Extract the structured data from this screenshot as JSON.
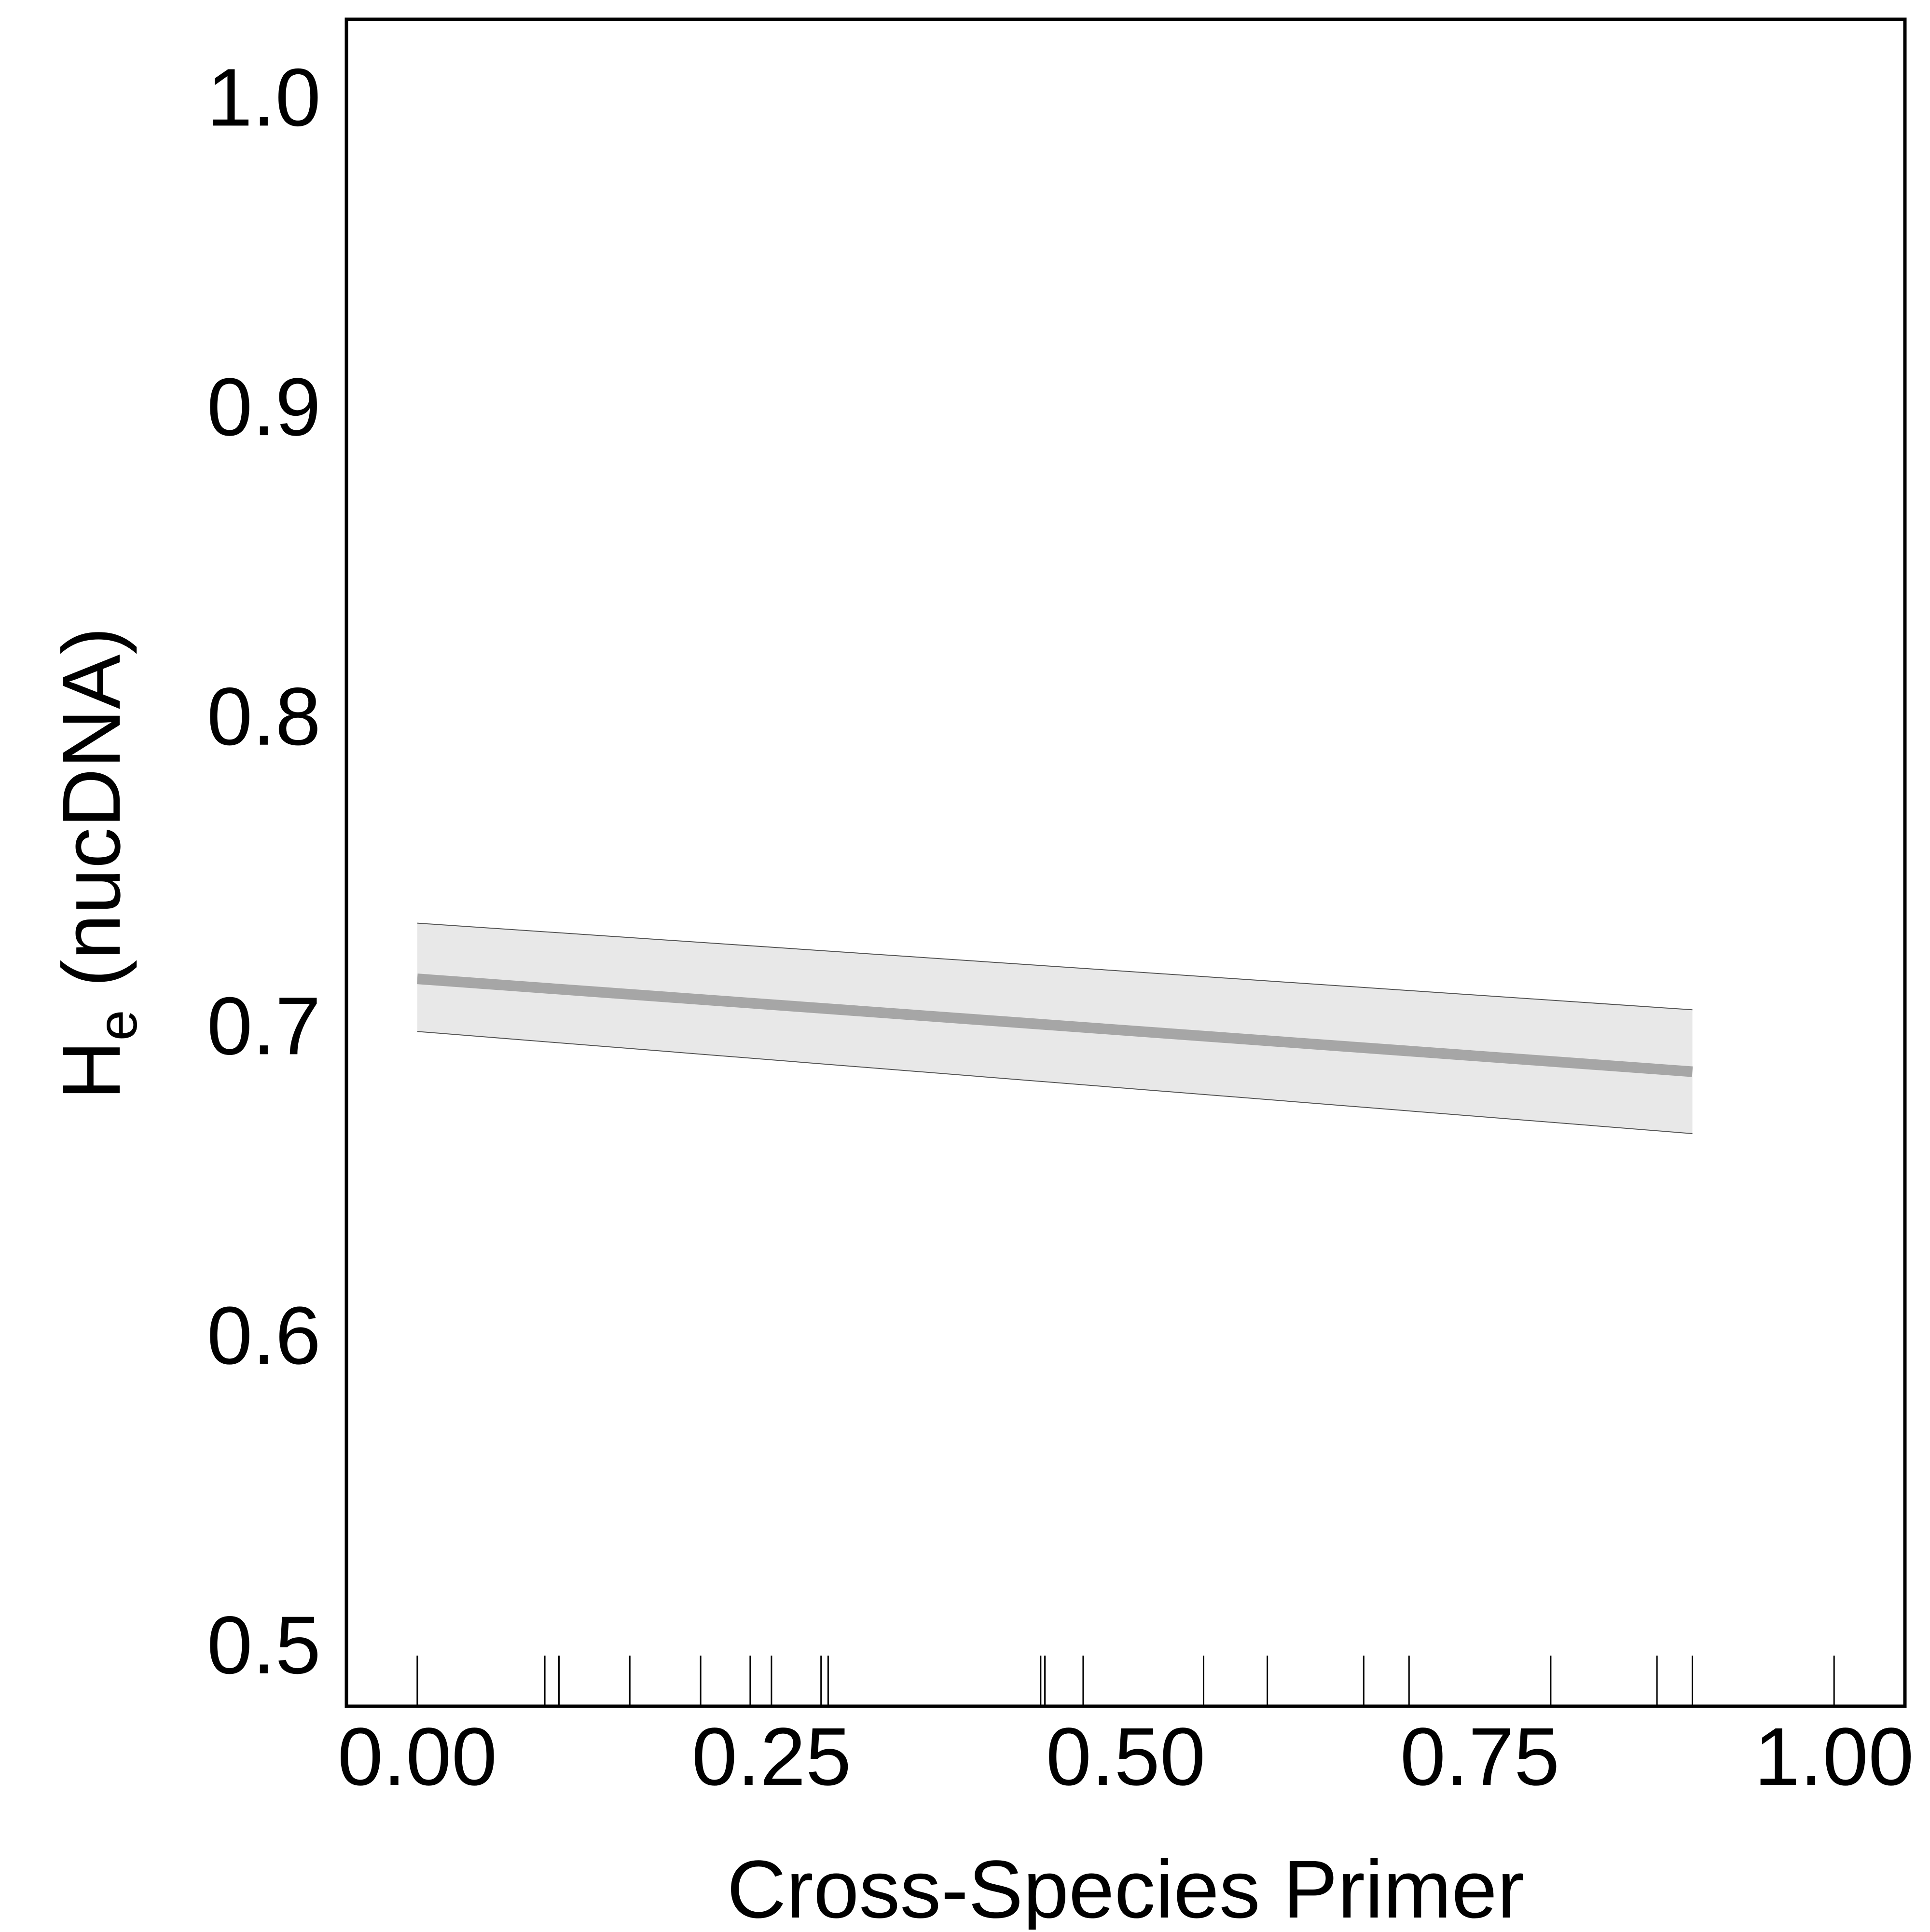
{
  "chart_data": {
    "type": "line",
    "title": "",
    "xlabel": "Cross-Species Primer",
    "ylabel": {
      "main": "H",
      "subscript": "e",
      "suffix": " (nucDNA)"
    },
    "xlim": [
      -0.05,
      1.05
    ],
    "ylim": [
      0.48,
      1.025
    ],
    "x_ticks": [
      0.0,
      0.25,
      0.5,
      0.75,
      1.0
    ],
    "x_tick_labels": [
      "0.00",
      "0.25",
      "0.50",
      "0.75",
      "1.00"
    ],
    "y_ticks": [
      0.5,
      0.6,
      0.7,
      0.8,
      0.9,
      1.0
    ],
    "y_tick_labels": [
      "0.5",
      "0.6",
      "0.7",
      "0.8",
      "0.9",
      "1.0"
    ],
    "series": [
      {
        "type": "line",
        "x": [
          0.0,
          0.9
        ],
        "y": [
          0.715,
          0.685
        ],
        "ci_lower": [
          0.698,
          0.665
        ],
        "ci_upper": [
          0.733,
          0.705
        ],
        "line_color": "#a6a6a6",
        "band_color": "#e8e8e8"
      }
    ],
    "rug_x": [
      0.0,
      0.09,
      0.1,
      0.15,
      0.2,
      0.235,
      0.25,
      0.285,
      0.29,
      0.44,
      0.443,
      0.47,
      0.555,
      0.6,
      0.668,
      0.7,
      0.8,
      0.875,
      0.9,
      1.0
    ],
    "grid": false,
    "frame": true
  }
}
